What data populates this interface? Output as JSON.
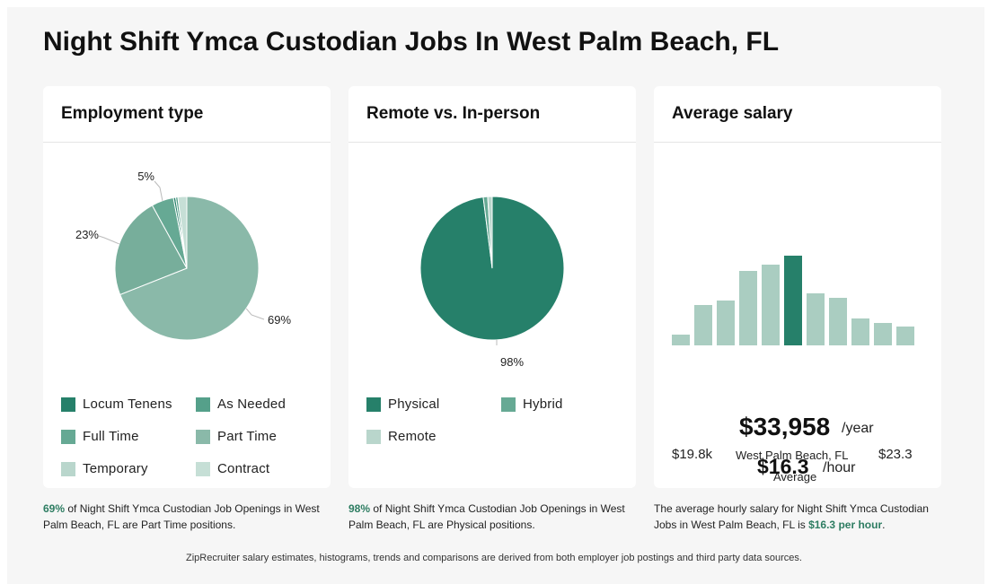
{
  "page": {
    "title": "Night Shift Ymca Custodian Jobs In West Palm Beach, FL",
    "footnote": "ZipRecruiter salary estimates, histograms, trends and comparisons are derived from both employer job postings and third party data sources."
  },
  "employment": {
    "title": "Employment type",
    "legend": [
      "Locum Tenens",
      "As Needed",
      "Full Time",
      "Part Time",
      "Temporary",
      "Contract"
    ],
    "caption_highlight": "69%",
    "caption_rest": " of Night Shift Ymca Custodian Job Openings in West Palm Beach, FL are Part Time positions."
  },
  "remote": {
    "title": "Remote vs. In-person",
    "legend": [
      "Physical",
      "Hybrid",
      "Remote"
    ],
    "caption_highlight": "98%",
    "caption_rest": " of Night Shift Ymca Custodian Job Openings in West Palm Beach, FL are Physical positions."
  },
  "salary": {
    "title": "Average salary",
    "range_min": "$19.8k",
    "range_max": "$23.3",
    "location": "West Palm Beach, FL",
    "avg_label": "Average",
    "yearly": "$33,958",
    "yearly_unit": "/year",
    "hourly": "$16.3",
    "hourly_unit": "/hour",
    "caption_pre": "The average hourly salary for Night Shift Ymca Custodian Jobs in West Palm Beach, FL is ",
    "caption_highlight": "$16.3 per hour",
    "caption_post": "."
  },
  "colors": {
    "dark_green": "#26806a",
    "mid_green": "#5ea58f",
    "light_green": "#8ab9a9",
    "pale_green": "#b9d6cc",
    "paler_green": "#c6dfd6",
    "highlight_text": "#2e7d62"
  },
  "chart_data": [
    {
      "type": "pie",
      "title": "Employment type",
      "slices": [
        {
          "name": "Locum Tenens",
          "value": 0.5,
          "color": "#26806a"
        },
        {
          "name": "As Needed",
          "value": 0.5,
          "color": "#55a08a"
        },
        {
          "name": "Full Time",
          "value": 5,
          "color": "#66a994",
          "label": "5%"
        },
        {
          "name": "Part Time",
          "value": 69,
          "color": "#8ab9a9",
          "label": "69%",
          "start_deg": 0
        },
        {
          "name": "Temporary",
          "value": 23,
          "color": "#77ae9b",
          "label": "23%"
        },
        {
          "name": "Contract",
          "value": 2,
          "color": "#c6dfd6"
        }
      ]
    },
    {
      "type": "pie",
      "title": "Remote vs. In-person",
      "slices": [
        {
          "name": "Physical",
          "value": 98,
          "color": "#26806a",
          "label": "98%"
        },
        {
          "name": "Hybrid",
          "value": 1,
          "color": "#66a994"
        },
        {
          "name": "Remote",
          "value": 1,
          "color": "#b9d6cc"
        }
      ]
    },
    {
      "type": "bar",
      "title": "Average salary",
      "values": [
        12,
        45,
        50,
        83,
        90,
        100,
        58,
        53,
        30,
        25,
        21
      ],
      "highlight_index": 5,
      "xlabel_left": "$19.8k",
      "xlabel_right": "$23.3"
    }
  ]
}
